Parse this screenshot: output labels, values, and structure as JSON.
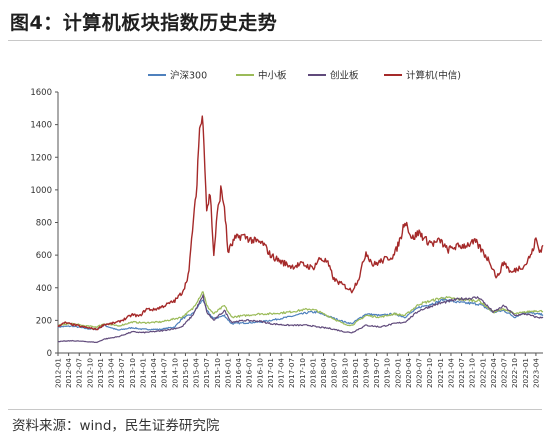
{
  "header": {
    "title": "图4：计算机板块指数历史走势"
  },
  "footer": {
    "source": "资料来源：wind，民生证券研究院"
  },
  "chart_data": {
    "type": "line",
    "title": "",
    "xlabel": "",
    "ylabel": "",
    "ylim": [
      0,
      1600
    ],
    "yticks": [
      0,
      200,
      400,
      600,
      800,
      1000,
      1200,
      1400,
      1600
    ],
    "grid": false,
    "legend_position": "top",
    "x_tick_labels": [
      "2012-01",
      "2012-04",
      "2012-07",
      "2012-10",
      "2013-01",
      "2013-04",
      "2013-07",
      "2013-10",
      "2014-01",
      "2014-04",
      "2014-07",
      "2014-10",
      "2015-01",
      "2015-04",
      "2015-07",
      "2015-10",
      "2016-01",
      "2016-04",
      "2016-07",
      "2016-10",
      "2017-01",
      "2017-04",
      "2017-07",
      "2017-10",
      "2018-01",
      "2018-04",
      "2018-07",
      "2018-10",
      "2019-01",
      "2019-04",
      "2019-07",
      "2019-10",
      "2020-01",
      "2020-04",
      "2020-07",
      "2020-10",
      "2021-01",
      "2021-04",
      "2021-07",
      "2021-10",
      "2022-01",
      "2022-04",
      "2022-07",
      "2022-10",
      "2023-01",
      "2023-04"
    ],
    "x_start": "2012-01",
    "x_end": "2023-06",
    "series": [
      {
        "name": "沪深300",
        "color": "#4f81bd",
        "points": [
          [
            "2012-01",
            160
          ],
          [
            "2012-05",
            165
          ],
          [
            "2012-09",
            150
          ],
          [
            "2012-12",
            145
          ],
          [
            "2013-02",
            170
          ],
          [
            "2013-06",
            140
          ],
          [
            "2013-10",
            155
          ],
          [
            "2014-01",
            145
          ],
          [
            "2014-06",
            145
          ],
          [
            "2014-10",
            160
          ],
          [
            "2014-12",
            210
          ],
          [
            "2015-03",
            240
          ],
          [
            "2015-06",
            330
          ],
          [
            "2015-07",
            260
          ],
          [
            "2015-09",
            210
          ],
          [
            "2015-12",
            230
          ],
          [
            "2016-02",
            180
          ],
          [
            "2016-06",
            185
          ],
          [
            "2016-10",
            190
          ],
          [
            "2017-01",
            200
          ],
          [
            "2017-06",
            220
          ],
          [
            "2017-12",
            250
          ],
          [
            "2018-02",
            250
          ],
          [
            "2018-06",
            220
          ],
          [
            "2018-10",
            190
          ],
          [
            "2018-12",
            180
          ],
          [
            "2019-04",
            240
          ],
          [
            "2019-08",
            230
          ],
          [
            "2019-12",
            240
          ],
          [
            "2020-03",
            220
          ],
          [
            "2020-07",
            280
          ],
          [
            "2020-12",
            310
          ],
          [
            "2021-02",
            330
          ],
          [
            "2021-06",
            310
          ],
          [
            "2021-12",
            300
          ],
          [
            "2022-04",
            250
          ],
          [
            "2022-07",
            260
          ],
          [
            "2022-10",
            220
          ],
          [
            "2023-01",
            250
          ],
          [
            "2023-04",
            240
          ],
          [
            "2023-06",
            235
          ]
        ]
      },
      {
        "name": "中小板",
        "color": "#9bbb59",
        "points": [
          [
            "2012-01",
            170
          ],
          [
            "2012-05",
            180
          ],
          [
            "2012-09",
            165
          ],
          [
            "2012-12",
            160
          ],
          [
            "2013-02",
            180
          ],
          [
            "2013-06",
            165
          ],
          [
            "2013-10",
            190
          ],
          [
            "2014-01",
            185
          ],
          [
            "2014-06",
            190
          ],
          [
            "2014-10",
            210
          ],
          [
            "2014-12",
            220
          ],
          [
            "2015-03",
            270
          ],
          [
            "2015-06",
            380
          ],
          [
            "2015-07",
            290
          ],
          [
            "2015-09",
            240
          ],
          [
            "2015-12",
            290
          ],
          [
            "2016-02",
            220
          ],
          [
            "2016-06",
            230
          ],
          [
            "2016-10",
            240
          ],
          [
            "2017-01",
            240
          ],
          [
            "2017-06",
            250
          ],
          [
            "2017-12",
            270
          ],
          [
            "2018-02",
            260
          ],
          [
            "2018-06",
            220
          ],
          [
            "2018-10",
            175
          ],
          [
            "2018-12",
            170
          ],
          [
            "2019-04",
            230
          ],
          [
            "2019-08",
            220
          ],
          [
            "2019-12",
            240
          ],
          [
            "2020-03",
            230
          ],
          [
            "2020-07",
            300
          ],
          [
            "2020-12",
            330
          ],
          [
            "2021-02",
            340
          ],
          [
            "2021-06",
            330
          ],
          [
            "2021-12",
            320
          ],
          [
            "2022-04",
            250
          ],
          [
            "2022-07",
            270
          ],
          [
            "2022-10",
            240
          ],
          [
            "2023-01",
            250
          ],
          [
            "2023-04",
            260
          ],
          [
            "2023-06",
            255
          ]
        ]
      },
      {
        "name": "创业板",
        "color": "#604a7b",
        "points": [
          [
            "2012-01",
            70
          ],
          [
            "2012-05",
            75
          ],
          [
            "2012-09",
            70
          ],
          [
            "2012-12",
            65
          ],
          [
            "2013-02",
            85
          ],
          [
            "2013-06",
            100
          ],
          [
            "2013-10",
            130
          ],
          [
            "2014-01",
            125
          ],
          [
            "2014-06",
            135
          ],
          [
            "2014-10",
            150
          ],
          [
            "2014-12",
            160
          ],
          [
            "2015-03",
            230
          ],
          [
            "2015-06",
            350
          ],
          [
            "2015-07",
            250
          ],
          [
            "2015-09",
            200
          ],
          [
            "2015-12",
            260
          ],
          [
            "2016-02",
            190
          ],
          [
            "2016-06",
            200
          ],
          [
            "2016-10",
            195
          ],
          [
            "2017-01",
            180
          ],
          [
            "2017-06",
            170
          ],
          [
            "2017-12",
            170
          ],
          [
            "2018-02",
            160
          ],
          [
            "2018-06",
            150
          ],
          [
            "2018-10",
            130
          ],
          [
            "2018-12",
            125
          ],
          [
            "2019-04",
            170
          ],
          [
            "2019-08",
            160
          ],
          [
            "2019-12",
            180
          ],
          [
            "2020-03",
            190
          ],
          [
            "2020-07",
            260
          ],
          [
            "2020-12",
            300
          ],
          [
            "2021-02",
            310
          ],
          [
            "2021-06",
            330
          ],
          [
            "2021-12",
            340
          ],
          [
            "2022-04",
            250
          ],
          [
            "2022-07",
            290
          ],
          [
            "2022-10",
            230
          ],
          [
            "2023-01",
            240
          ],
          [
            "2023-04",
            220
          ],
          [
            "2023-06",
            215
          ]
        ]
      },
      {
        "name": "计算机(中信)",
        "color": "#a52a2a",
        "points": [
          [
            "2012-01",
            165
          ],
          [
            "2012-03",
            185
          ],
          [
            "2012-05",
            175
          ],
          [
            "2012-08",
            160
          ],
          [
            "2012-12",
            145
          ],
          [
            "2013-02",
            175
          ],
          [
            "2013-04",
            180
          ],
          [
            "2013-06",
            190
          ],
          [
            "2013-08",
            210
          ],
          [
            "2013-10",
            235
          ],
          [
            "2013-12",
            225
          ],
          [
            "2014-02",
            270
          ],
          [
            "2014-04",
            265
          ],
          [
            "2014-06",
            280
          ],
          [
            "2014-08",
            300
          ],
          [
            "2014-10",
            320
          ],
          [
            "2014-12",
            370
          ],
          [
            "2015-01",
            420
          ],
          [
            "2015-02",
            500
          ],
          [
            "2015-03",
            760
          ],
          [
            "2015-04",
            960
          ],
          [
            "2015-05",
            1380
          ],
          [
            "2015-06",
            1440
          ],
          [
            "2015-07",
            880
          ],
          [
            "2015-08",
            980
          ],
          [
            "2015-09",
            600
          ],
          [
            "2015-10",
            850
          ],
          [
            "2015-11",
            1000
          ],
          [
            "2015-12",
            900
          ],
          [
            "2016-01",
            620
          ],
          [
            "2016-03",
            700
          ],
          [
            "2016-05",
            720
          ],
          [
            "2016-08",
            690
          ],
          [
            "2016-11",
            670
          ],
          [
            "2017-01",
            600
          ],
          [
            "2017-04",
            560
          ],
          [
            "2017-07",
            530
          ],
          [
            "2017-10",
            545
          ],
          [
            "2018-01",
            520
          ],
          [
            "2018-03",
            580
          ],
          [
            "2018-05",
            560
          ],
          [
            "2018-07",
            450
          ],
          [
            "2018-10",
            410
          ],
          [
            "2018-12",
            380
          ],
          [
            "2019-02",
            460
          ],
          [
            "2019-04",
            620
          ],
          [
            "2019-06",
            540
          ],
          [
            "2019-08",
            560
          ],
          [
            "2019-10",
            580
          ],
          [
            "2019-12",
            600
          ],
          [
            "2020-02",
            720
          ],
          [
            "2020-03",
            820
          ],
          [
            "2020-05",
            700
          ],
          [
            "2020-07",
            740
          ],
          [
            "2020-09",
            690
          ],
          [
            "2020-11",
            670
          ],
          [
            "2021-01",
            690
          ],
          [
            "2021-03",
            630
          ],
          [
            "2021-05",
            650
          ],
          [
            "2021-08",
            660
          ],
          [
            "2021-11",
            680
          ],
          [
            "2022-01",
            620
          ],
          [
            "2022-03",
            560
          ],
          [
            "2022-05",
            460
          ],
          [
            "2022-07",
            560
          ],
          [
            "2022-09",
            490
          ],
          [
            "2022-11",
            520
          ],
          [
            "2023-01",
            540
          ],
          [
            "2023-02",
            580
          ],
          [
            "2023-03",
            620
          ],
          [
            "2023-04",
            700
          ],
          [
            "2023-05",
            620
          ],
          [
            "2023-06",
            660
          ]
        ]
      }
    ]
  }
}
